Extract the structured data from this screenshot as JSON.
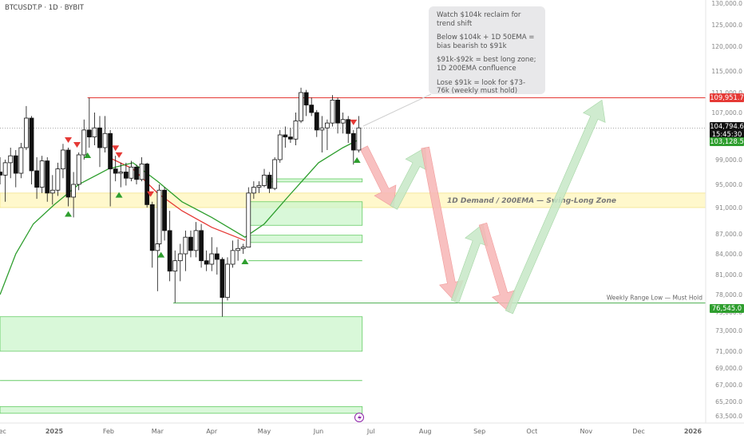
{
  "symbol_line": "BTCUSDT.P · 1D · BYBIT",
  "notes": [
    "Watch $104k reclaim for trend shift",
    "Below $104k + 1D 50EMA = bias bearish to $91k",
    "$91k-$92k = best long zone; 1D 200EMA confluence",
    "Lose $91k = look for $73-76k (weekly must hold)"
  ],
  "price_tags": {
    "resistance": "109,951.7",
    "last_price": "104,794.6",
    "countdown": "15:45:30",
    "ema50": "103,128.5",
    "weekly_low": "76,545.0"
  },
  "colors": {
    "up": "#111111",
    "down": "#111111",
    "ema50": "#e53935",
    "ema200": "#2e9e2e",
    "demand_fill": "#ccf5cc",
    "demand_stroke": "#66cc66",
    "swing_fill": "#fff8cc",
    "resistance": "#e53935",
    "arrow_red": "#f7b5b5",
    "arrow_green": "#c7e8c7"
  },
  "chart_data": {
    "type": "candlestick",
    "title": "BTCUSDT.P · 1D · BYBIT",
    "x_tick_labels": [
      "Dec",
      "2025",
      "Feb",
      "Mar",
      "Apr",
      "May",
      "Jun",
      "Jul",
      "Aug",
      "Sep",
      "Oct",
      "Nov",
      "Dec",
      "2026"
    ],
    "y_tick_labels": [
      "130,000.0",
      "125,000.0",
      "120,000.0",
      "115,000.0",
      "111,000.0",
      "107,000.0",
      "103,000.0",
      "99,000.0",
      "95,000.0",
      "91,000.0",
      "87,000.0",
      "84,000.0",
      "81,000.0",
      "78,000.0",
      "75,000.0",
      "73,000.0",
      "71,000.0",
      "69,000.0",
      "67,000.0",
      "65,200.0",
      "63,500.0"
    ],
    "y_tick_values": [
      130000,
      125000,
      120000,
      115000,
      111000,
      107000,
      103000,
      99000,
      95000,
      91000,
      87000,
      84000,
      81000,
      78000,
      75000,
      73000,
      71000,
      69000,
      67000,
      65200,
      63500
    ],
    "price_scale": "log",
    "x_range": [
      "2024-12-01",
      "2026-01-01"
    ],
    "candles": [
      {
        "date": "2024-12-01",
        "o": 97000,
        "h": 99500,
        "l": 95000,
        "c": 96500
      },
      {
        "date": "2024-12-04",
        "o": 96500,
        "h": 99000,
        "l": 92000,
        "c": 98500
      },
      {
        "date": "2024-12-07",
        "o": 98500,
        "h": 101500,
        "l": 96000,
        "c": 99800
      },
      {
        "date": "2024-12-10",
        "o": 99800,
        "h": 101000,
        "l": 94500,
        "c": 96800
      },
      {
        "date": "2024-12-13",
        "o": 96800,
        "h": 102500,
        "l": 96000,
        "c": 101500
      },
      {
        "date": "2024-12-16",
        "o": 101500,
        "h": 108300,
        "l": 101000,
        "c": 106200
      },
      {
        "date": "2024-12-19",
        "o": 106200,
        "h": 106500,
        "l": 95000,
        "c": 97200
      },
      {
        "date": "2024-12-22",
        "o": 97200,
        "h": 99500,
        "l": 92500,
        "c": 94500
      },
      {
        "date": "2024-12-25",
        "o": 94500,
        "h": 99800,
        "l": 93500,
        "c": 98800
      },
      {
        "date": "2024-12-28",
        "o": 98800,
        "h": 99500,
        "l": 92000,
        "c": 93500
      },
      {
        "date": "2024-12-31",
        "o": 93500,
        "h": 96500,
        "l": 91500,
        "c": 94000
      },
      {
        "date": "2025-01-03",
        "o": 94000,
        "h": 98500,
        "l": 93000,
        "c": 97500
      },
      {
        "date": "2025-01-06",
        "o": 97500,
        "h": 102300,
        "l": 96000,
        "c": 101000
      },
      {
        "date": "2025-01-09",
        "o": 101000,
        "h": 101500,
        "l": 91200,
        "c": 92800
      },
      {
        "date": "2025-01-12",
        "o": 92800,
        "h": 97000,
        "l": 89500,
        "c": 95000
      },
      {
        "date": "2025-01-15",
        "o": 95000,
        "h": 100500,
        "l": 94000,
        "c": 100000
      },
      {
        "date": "2025-01-18",
        "o": 100000,
        "h": 106000,
        "l": 99000,
        "c": 104500
      },
      {
        "date": "2025-01-21",
        "o": 104500,
        "h": 109950,
        "l": 101500,
        "c": 103500
      },
      {
        "date": "2025-01-24",
        "o": 103500,
        "h": 107000,
        "l": 102000,
        "c": 104800
      },
      {
        "date": "2025-01-27",
        "o": 104800,
        "h": 106500,
        "l": 97800,
        "c": 101500
      },
      {
        "date": "2025-01-30",
        "o": 101500,
        "h": 106500,
        "l": 100500,
        "c": 104000
      },
      {
        "date": "2025-02-02",
        "o": 104000,
        "h": 104500,
        "l": 91200,
        "c": 97500
      },
      {
        "date": "2025-02-05",
        "o": 97500,
        "h": 99800,
        "l": 95500,
        "c": 96800
      },
      {
        "date": "2025-02-08",
        "o": 96800,
        "h": 98500,
        "l": 94500,
        "c": 97000
      },
      {
        "date": "2025-02-11",
        "o": 97000,
        "h": 98500,
        "l": 94800,
        "c": 96000
      },
      {
        "date": "2025-02-14",
        "o": 96000,
        "h": 98800,
        "l": 95500,
        "c": 97800
      },
      {
        "date": "2025-02-17",
        "o": 97800,
        "h": 98200,
        "l": 95000,
        "c": 95800
      },
      {
        "date": "2025-02-20",
        "o": 95800,
        "h": 99500,
        "l": 95500,
        "c": 98300
      },
      {
        "date": "2025-02-23",
        "o": 98300,
        "h": 98500,
        "l": 91000,
        "c": 91500
      },
      {
        "date": "2025-02-26",
        "o": 91500,
        "h": 92000,
        "l": 82000,
        "c": 84500
      },
      {
        "date": "2025-03-01",
        "o": 84500,
        "h": 86500,
        "l": 78500,
        "c": 85500
      },
      {
        "date": "2025-03-02",
        "o": 85500,
        "h": 95000,
        "l": 85000,
        "c": 94000
      },
      {
        "date": "2025-03-05",
        "o": 94000,
        "h": 94500,
        "l": 86000,
        "c": 87500
      },
      {
        "date": "2025-03-08",
        "o": 87500,
        "h": 90500,
        "l": 80000,
        "c": 81500
      },
      {
        "date": "2025-03-11",
        "o": 81500,
        "h": 84500,
        "l": 76600,
        "c": 83000
      },
      {
        "date": "2025-03-14",
        "o": 83000,
        "h": 85500,
        "l": 80000,
        "c": 84000
      },
      {
        "date": "2025-03-17",
        "o": 84000,
        "h": 87500,
        "l": 81500,
        "c": 86500
      },
      {
        "date": "2025-03-20",
        "o": 86500,
        "h": 87500,
        "l": 83500,
        "c": 84500
      },
      {
        "date": "2025-03-23",
        "o": 84500,
        "h": 88800,
        "l": 83500,
        "c": 87500
      },
      {
        "date": "2025-03-26",
        "o": 87500,
        "h": 88500,
        "l": 82000,
        "c": 83000
      },
      {
        "date": "2025-03-29",
        "o": 83000,
        "h": 84500,
        "l": 81500,
        "c": 82500
      },
      {
        "date": "2025-04-01",
        "o": 82500,
        "h": 86500,
        "l": 81500,
        "c": 84000
      },
      {
        "date": "2025-04-04",
        "o": 84000,
        "h": 85000,
        "l": 81000,
        "c": 83200
      },
      {
        "date": "2025-04-07",
        "o": 83200,
        "h": 83500,
        "l": 74500,
        "c": 77500
      },
      {
        "date": "2025-04-10",
        "o": 77500,
        "h": 83500,
        "l": 77000,
        "c": 82500
      },
      {
        "date": "2025-04-13",
        "o": 82500,
        "h": 86000,
        "l": 82000,
        "c": 84500
      },
      {
        "date": "2025-04-16",
        "o": 84500,
        "h": 86200,
        "l": 83000,
        "c": 84800
      },
      {
        "date": "2025-04-19",
        "o": 84800,
        "h": 85500,
        "l": 84000,
        "c": 85000
      },
      {
        "date": "2025-04-22",
        "o": 85000,
        "h": 94500,
        "l": 85000,
        "c": 93500
      },
      {
        "date": "2025-04-25",
        "o": 93500,
        "h": 95500,
        "l": 92500,
        "c": 94500
      },
      {
        "date": "2025-04-28",
        "o": 94500,
        "h": 95500,
        "l": 93500,
        "c": 94800
      },
      {
        "date": "2025-05-01",
        "o": 94800,
        "h": 97500,
        "l": 94500,
        "c": 96500
      },
      {
        "date": "2025-05-04",
        "o": 96500,
        "h": 97000,
        "l": 93500,
        "c": 94300
      },
      {
        "date": "2025-05-07",
        "o": 94300,
        "h": 99500,
        "l": 94000,
        "c": 99000
      },
      {
        "date": "2025-05-10",
        "o": 99000,
        "h": 104500,
        "l": 98500,
        "c": 103800
      },
      {
        "date": "2025-05-13",
        "o": 103800,
        "h": 105000,
        "l": 101500,
        "c": 103500
      },
      {
        "date": "2025-05-16",
        "o": 103500,
        "h": 104800,
        "l": 102500,
        "c": 103200
      },
      {
        "date": "2025-05-19",
        "o": 103200,
        "h": 107000,
        "l": 102000,
        "c": 105800
      },
      {
        "date": "2025-05-22",
        "o": 105800,
        "h": 111900,
        "l": 105500,
        "c": 111000
      },
      {
        "date": "2025-05-25",
        "o": 111000,
        "h": 111500,
        "l": 106500,
        "c": 108500
      },
      {
        "date": "2025-05-28",
        "o": 108500,
        "h": 110000,
        "l": 106500,
        "c": 107000
      },
      {
        "date": "2025-05-31",
        "o": 107000,
        "h": 107500,
        "l": 103500,
        "c": 104500
      },
      {
        "date": "2025-06-03",
        "o": 104500,
        "h": 106500,
        "l": 100500,
        "c": 104800
      },
      {
        "date": "2025-06-06",
        "o": 104800,
        "h": 106000,
        "l": 101000,
        "c": 105500
      },
      {
        "date": "2025-06-09",
        "o": 105500,
        "h": 110500,
        "l": 105000,
        "c": 109500
      },
      {
        "date": "2025-06-12",
        "o": 109500,
        "h": 110000,
        "l": 104000,
        "c": 105500
      },
      {
        "date": "2025-06-15",
        "o": 105500,
        "h": 107000,
        "l": 104000,
        "c": 106000
      },
      {
        "date": "2025-06-18",
        "o": 106000,
        "h": 106500,
        "l": 102500,
        "c": 104000
      },
      {
        "date": "2025-06-21",
        "o": 104000,
        "h": 104500,
        "l": 98200,
        "c": 101000
      },
      {
        "date": "2025-06-24",
        "o": 101000,
        "h": 106500,
        "l": 100500,
        "c": 104800
      }
    ],
    "ema50": [
      {
        "date": "2024-12-01",
        "v": 78000
      },
      {
        "date": "2024-12-10",
        "v": 84000
      },
      {
        "date": "2024-12-20",
        "v": 88500
      },
      {
        "date": "2025-01-01",
        "v": 91500
      },
      {
        "date": "2025-01-15",
        "v": 95000
      },
      {
        "date": "2025-02-01",
        "v": 97500
      },
      {
        "date": "2025-02-15",
        "v": 98500
      },
      {
        "date": "2025-03-01",
        "v": 95500
      },
      {
        "date": "2025-03-15",
        "v": 92000
      },
      {
        "date": "2025-04-01",
        "v": 89500
      },
      {
        "date": "2025-04-20",
        "v": 86500
      },
      {
        "date": "2025-05-01",
        "v": 88500
      },
      {
        "date": "2025-05-15",
        "v": 93000
      },
      {
        "date": "2025-06-01",
        "v": 98500
      },
      {
        "date": "2025-06-15",
        "v": 101500
      },
      {
        "date": "2025-06-24",
        "v": 103128.5
      }
    ],
    "ema200": [
      {
        "date": "2025-02-01",
        "v": 99500
      },
      {
        "date": "2025-02-15",
        "v": 97500
      },
      {
        "date": "2025-03-01",
        "v": 93500
      },
      {
        "date": "2025-03-15",
        "v": 90500
      },
      {
        "date": "2025-04-01",
        "v": 88000
      },
      {
        "date": "2025-04-20",
        "v": 86000
      }
    ],
    "annotations": {
      "resistance": 109951.7,
      "weekly_low": 76545,
      "swing_zone": [
        91000,
        93500
      ],
      "swing_zone_label": "1D Demand / 200EMA — Swing-Long Zone",
      "weekly_low_label": "Weekly Range Low — Must Hold",
      "demand_boxes": [
        {
          "from": "2025-05-01",
          "to": "2025-06-26",
          "low": 95400,
          "high": 95900
        },
        {
          "from": "2025-04-22",
          "to": "2025-06-26",
          "low": 88300,
          "high": 92000
        },
        {
          "from": "2025-04-22",
          "to": "2025-06-26",
          "low": 85700,
          "high": 86800
        },
        {
          "from": "2024-12-01",
          "to": "2025-06-26",
          "low": 71000,
          "high": 74500
        },
        {
          "from": "2024-12-01",
          "to": "2025-06-26",
          "low": 63800,
          "high": 64600
        }
      ],
      "demand_lines": [
        {
          "from": "2025-04-22",
          "to": "2025-06-26",
          "value": 83000
        },
        {
          "from": "2024-12-01",
          "to": "2025-06-26",
          "value": 67500
        }
      ],
      "sell_markers": [
        "2025-01-09",
        "2025-01-14",
        "2025-02-05",
        "2025-02-07",
        "2025-02-25",
        "2025-06-21"
      ],
      "buy_markers": [
        "2025-01-09",
        "2025-01-20",
        "2025-02-07",
        "2025-03-03",
        "2025-04-20",
        "2025-06-23"
      ]
    },
    "projections": [
      {
        "color": "red",
        "from": [
          "2025-06-27",
          101500
        ],
        "to": [
          "2025-07-14",
          91000
        ]
      },
      {
        "color": "green",
        "from": [
          "2025-07-14",
          91000
        ],
        "to": [
          "2025-08-01",
          101500
        ]
      },
      {
        "color": "red",
        "from": [
          "2025-08-01",
          101500
        ],
        "to": [
          "2025-08-18",
          76800
        ]
      },
      {
        "color": "green",
        "from": [
          "2025-08-18",
          76800
        ],
        "to": [
          "2025-09-03",
          88500
        ]
      },
      {
        "color": "red",
        "from": [
          "2025-09-03",
          88500
        ],
        "to": [
          "2025-09-18",
          75000
        ]
      },
      {
        "color": "green",
        "from": [
          "2025-09-18",
          75000
        ],
        "to": [
          "2025-11-10",
          109500
        ]
      }
    ]
  }
}
